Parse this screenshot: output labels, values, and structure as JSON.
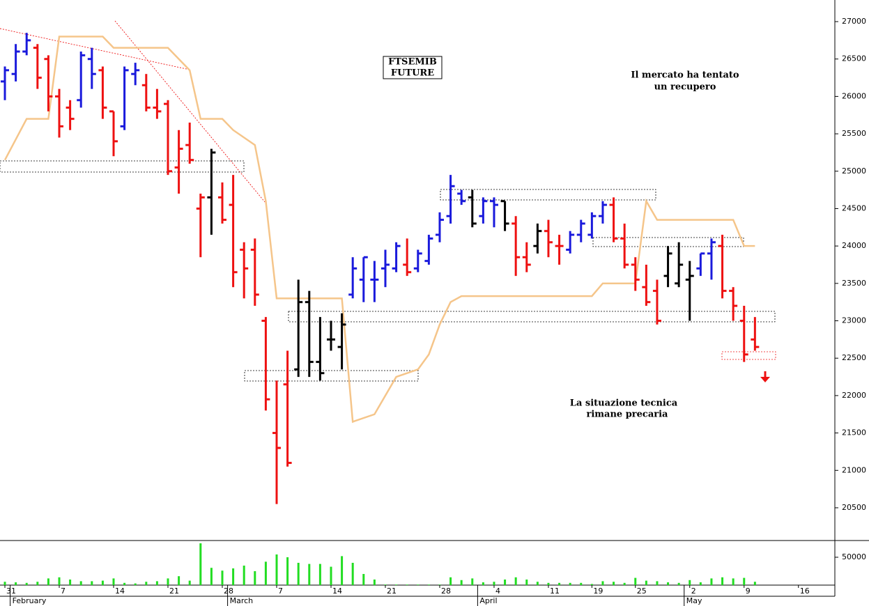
{
  "chart_data": {
    "type": "ohlc",
    "title": [
      "FTSEMIB",
      "FUTURE"
    ],
    "annotations": [
      {
        "text": [
          "Il mercato ha tentato",
          "un recupero"
        ],
        "color": "#000000"
      },
      {
        "text": [
          "La situazione tecnica",
          "rimane precaria"
        ],
        "color": "#ee1111"
      }
    ],
    "x": [
      0,
      1,
      2,
      3,
      4,
      5,
      6,
      7,
      8,
      9,
      10,
      11,
      12,
      13,
      14,
      15,
      16,
      17,
      18,
      19,
      20,
      21,
      22,
      23,
      24,
      25,
      26,
      27,
      28,
      29,
      30,
      31,
      32,
      33,
      34,
      35,
      36,
      37,
      38,
      39,
      40,
      41,
      42,
      43,
      44,
      45,
      46,
      47,
      48,
      49,
      50,
      51,
      52,
      53,
      54,
      55,
      56,
      57,
      58,
      59,
      60,
      61,
      62,
      63,
      64,
      65,
      66,
      67,
      68,
      69
    ],
    "open": [
      26200,
      26300,
      26600,
      26650,
      26500,
      26000,
      25850,
      25950,
      26500,
      26350,
      25800,
      25600,
      26300,
      26150,
      25850,
      25900,
      25050,
      25350,
      24500,
      24650,
      24650,
      24550,
      23950,
      23950,
      23000,
      21500,
      22150,
      22350,
      23250,
      22450,
      22750,
      22650,
      23350,
      23550,
      23550,
      23700,
      23700,
      23750,
      23700,
      23800,
      24150,
      24400,
      24700,
      24650,
      24400,
      24600,
      24600,
      24300,
      23850,
      24000,
      24200,
      24000,
      23950,
      24150,
      24150,
      24400,
      24550,
      24100,
      23750,
      23450,
      23400,
      23600,
      23500,
      23550,
      23700,
      23900,
      24000,
      23400,
      23000,
      22750
    ],
    "high": [
      26400,
      26700,
      26850,
      26700,
      26550,
      26100,
      25950,
      26600,
      26650,
      26400,
      25800,
      26400,
      26450,
      26300,
      26100,
      25950,
      25550,
      25650,
      24700,
      25300,
      24850,
      24950,
      24050,
      24100,
      23050,
      22200,
      22600,
      23550,
      23400,
      23050,
      23000,
      23100,
      23850,
      23850,
      23800,
      23950,
      24050,
      24100,
      23950,
      24150,
      24450,
      24950,
      24750,
      24750,
      24650,
      24650,
      24600,
      24400,
      24050,
      24300,
      24350,
      24150,
      24200,
      24350,
      24450,
      24600,
      24650,
      24300,
      23850,
      23750,
      23550,
      24000,
      24050,
      23800,
      23900,
      24100,
      24150,
      23450,
      23200,
      23050
    ],
    "low": [
      25950,
      26200,
      26550,
      26100,
      25800,
      25450,
      25550,
      25850,
      26100,
      25700,
      25200,
      25550,
      26150,
      25800,
      25700,
      24950,
      24700,
      25100,
      23850,
      24150,
      24300,
      23450,
      23300,
      23200,
      21800,
      20550,
      21050,
      22250,
      22250,
      22200,
      22600,
      22350,
      23300,
      23250,
      23250,
      23450,
      23650,
      23600,
      23650,
      23750,
      24050,
      24300,
      24550,
      24250,
      24300,
      24250,
      24200,
      23600,
      23650,
      23900,
      23850,
      23750,
      23900,
      24050,
      24100,
      24300,
      24050,
      23700,
      23400,
      23200,
      22950,
      23450,
      23450,
      23000,
      23600,
      23550,
      23300,
      23000,
      22450,
      22600
    ],
    "close": [
      26350,
      26600,
      26750,
      26250,
      26000,
      25600,
      25700,
      26550,
      26300,
      25850,
      25400,
      26350,
      26350,
      25850,
      25800,
      25000,
      25300,
      25150,
      24650,
      25250,
      24350,
      23650,
      23700,
      23350,
      21950,
      21300,
      21100,
      23250,
      22450,
      22300,
      22750,
      22950,
      23700,
      23850,
      23550,
      23750,
      24000,
      23650,
      23900,
      24100,
      24350,
      24800,
      24600,
      24300,
      24600,
      24550,
      24300,
      23850,
      23750,
      24200,
      24050,
      24000,
      24150,
      24300,
      24400,
      24550,
      24100,
      23750,
      23550,
      23250,
      23000,
      23900,
      23750,
      23600,
      23900,
      24050,
      23400,
      23200,
      22550,
      22650
    ],
    "colors": [
      "#1a1adc",
      "#1a1adc",
      "#1a1adc",
      "#ee1111",
      "#ee1111",
      "#ee1111",
      "#ee1111",
      "#1a1adc",
      "#1a1adc",
      "#ee1111",
      "#ee1111",
      "#1a1adc",
      "#1a1adc",
      "#ee1111",
      "#ee1111",
      "#ee1111",
      "#ee1111",
      "#ee1111",
      "#ee1111",
      "#000000",
      "#ee1111",
      "#ee1111",
      "#ee1111",
      "#ee1111",
      "#ee1111",
      "#ee1111",
      "#ee1111",
      "#000000",
      "#000000",
      "#000000",
      "#000000",
      "#000000",
      "#1a1adc",
      "#1a1adc",
      "#1a1adc",
      "#1a1adc",
      "#1a1adc",
      "#ee1111",
      "#1a1adc",
      "#1a1adc",
      "#1a1adc",
      "#1a1adc",
      "#1a1adc",
      "#000000",
      "#1a1adc",
      "#1a1adc",
      "#000000",
      "#ee1111",
      "#ee1111",
      "#000000",
      "#ee1111",
      "#ee1111",
      "#1a1adc",
      "#1a1adc",
      "#1a1adc",
      "#1a1adc",
      "#ee1111",
      "#ee1111",
      "#ee1111",
      "#ee1111",
      "#ee1111",
      "#000000",
      "#000000",
      "#000000",
      "#1a1adc",
      "#1a1adc",
      "#ee1111",
      "#ee1111",
      "#ee1111",
      "#ee1111"
    ],
    "signal_line": {
      "color": "#f5c58a",
      "x": [
        0,
        2,
        4,
        5,
        9,
        10,
        15,
        17,
        18,
        20,
        21,
        23,
        24,
        25,
        31,
        32,
        34,
        36,
        38,
        39,
        40,
        41,
        42,
        54,
        55,
        58,
        59,
        60,
        67,
        68,
        69
      ],
      "values": [
        25150,
        25700,
        25700,
        26800,
        26800,
        26650,
        26650,
        26350,
        25700,
        25700,
        25550,
        25350,
        24600,
        23300,
        23300,
        21650,
        21750,
        22250,
        22350,
        22550,
        22950,
        23250,
        23330,
        23330,
        23500,
        23500,
        24600,
        24350,
        24350,
        24000,
        24000
      ]
    },
    "volume": {
      "color": "#22dd22",
      "values": [
        6000,
        5000,
        4000,
        6000,
        12000,
        14000,
        10000,
        7000,
        7000,
        8000,
        12000,
        4000,
        3000,
        6000,
        7000,
        12000,
        16000,
        8000,
        75000,
        31000,
        26000,
        30000,
        35000,
        25000,
        42000,
        55000,
        50000,
        40000,
        38000,
        38000,
        33000,
        52000,
        40000,
        20000,
        10000,
        1000,
        1000,
        1000,
        1000,
        1000,
        1000,
        14000,
        9000,
        12000,
        5000,
        6000,
        10000,
        14000,
        10000,
        6000,
        4000,
        4000,
        4000,
        4000,
        2000,
        7000,
        6000,
        4000,
        13000,
        8000,
        7000,
        5000,
        4000,
        9000,
        5000,
        12000,
        14000,
        12000,
        13000,
        6000
      ],
      "ylim": [
        0,
        80000
      ],
      "yticks": [
        50000
      ]
    },
    "xlim": [
      -0.45,
      76.35
    ],
    "ylim": [
      20062,
      27289
    ],
    "yticks": [
      20500,
      21000,
      21500,
      22000,
      22500,
      23000,
      23500,
      24000,
      24500,
      25000,
      25500,
      26000,
      26500,
      27000
    ],
    "xticks": [
      {
        "value": 0,
        "label": "31"
      },
      {
        "value": 5,
        "label": "7"
      },
      {
        "value": 10,
        "label": "14"
      },
      {
        "value": 15,
        "label": "21"
      },
      {
        "value": 20,
        "label": "28"
      },
      {
        "value": 25,
        "label": "7"
      },
      {
        "value": 30,
        "label": "14"
      },
      {
        "value": 35,
        "label": "21"
      },
      {
        "value": 40,
        "label": "28"
      },
      {
        "value": 45,
        "label": "4"
      },
      {
        "value": 50,
        "label": "11"
      },
      {
        "value": 54,
        "label": "19"
      },
      {
        "value": 58,
        "label": "25"
      },
      {
        "value": 63,
        "label": "2"
      },
      {
        "value": 68,
        "label": "9"
      },
      {
        "value": 73,
        "label": "16"
      }
    ],
    "months": [
      {
        "value": 1,
        "label": "February"
      },
      {
        "value": 21,
        "label": "March"
      },
      {
        "value": 44,
        "label": "April"
      },
      {
        "value": 63,
        "label": "May"
      }
    ]
  }
}
